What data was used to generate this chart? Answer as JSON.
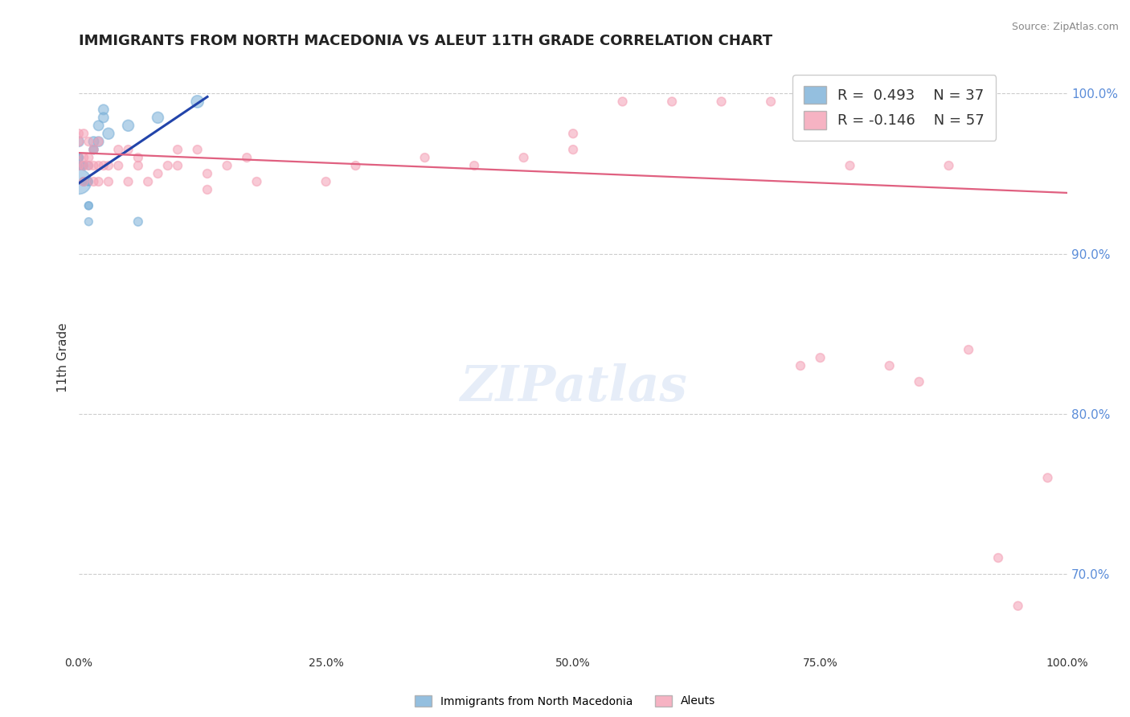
{
  "title": "IMMIGRANTS FROM NORTH MACEDONIA VS ALEUT 11TH GRADE CORRELATION CHART",
  "source_text": "Source: ZipAtlas.com",
  "ylabel": "11th Grade",
  "legend_entries": [
    {
      "label": "R =  0.493    N = 37",
      "color": "#a8c4e0"
    },
    {
      "label": "R = -0.146    N = 57",
      "color": "#f4a0b5"
    }
  ],
  "blue_scatter": {
    "x": [
      0.0,
      0.0,
      0.0,
      0.0,
      0.0,
      0.0,
      0.0,
      0.0,
      0.0,
      0.0,
      0.005,
      0.005,
      0.005,
      0.005,
      0.005,
      0.005,
      0.005,
      0.005,
      0.005,
      0.01,
      0.01,
      0.01,
      0.01,
      0.01,
      0.01,
      0.015,
      0.015,
      0.015,
      0.02,
      0.02,
      0.025,
      0.025,
      0.03,
      0.05,
      0.06,
      0.08,
      0.12
    ],
    "y": [
      0.97,
      0.96,
      0.96,
      0.96,
      0.955,
      0.955,
      0.955,
      0.955,
      0.955,
      0.945,
      0.955,
      0.955,
      0.955,
      0.955,
      0.945,
      0.945,
      0.945,
      0.945,
      0.945,
      0.955,
      0.945,
      0.945,
      0.93,
      0.93,
      0.92,
      0.97,
      0.965,
      0.965,
      0.97,
      0.98,
      0.985,
      0.99,
      0.975,
      0.98,
      0.92,
      0.985,
      0.995
    ],
    "sizes": [
      80,
      60,
      60,
      60,
      50,
      50,
      50,
      50,
      50,
      500,
      50,
      50,
      50,
      50,
      50,
      50,
      50,
      50,
      50,
      50,
      50,
      50,
      50,
      50,
      50,
      80,
      60,
      60,
      80,
      80,
      80,
      80,
      100,
      100,
      60,
      100,
      120
    ]
  },
  "pink_scatter": {
    "x": [
      0.0,
      0.0,
      0.0,
      0.005,
      0.005,
      0.005,
      0.005,
      0.01,
      0.01,
      0.01,
      0.015,
      0.015,
      0.015,
      0.02,
      0.02,
      0.02,
      0.025,
      0.03,
      0.03,
      0.04,
      0.04,
      0.05,
      0.05,
      0.06,
      0.06,
      0.07,
      0.08,
      0.09,
      0.1,
      0.1,
      0.12,
      0.13,
      0.13,
      0.15,
      0.17,
      0.18,
      0.25,
      0.28,
      0.35,
      0.4,
      0.45,
      0.5,
      0.5,
      0.55,
      0.6,
      0.65,
      0.7,
      0.73,
      0.75,
      0.78,
      0.82,
      0.85,
      0.88,
      0.9,
      0.93,
      0.95,
      0.98
    ],
    "y": [
      0.975,
      0.97,
      0.955,
      0.975,
      0.96,
      0.955,
      0.945,
      0.97,
      0.96,
      0.955,
      0.965,
      0.955,
      0.945,
      0.97,
      0.955,
      0.945,
      0.955,
      0.955,
      0.945,
      0.965,
      0.955,
      0.965,
      0.945,
      0.96,
      0.955,
      0.945,
      0.95,
      0.955,
      0.965,
      0.955,
      0.965,
      0.95,
      0.94,
      0.955,
      0.96,
      0.945,
      0.945,
      0.955,
      0.96,
      0.955,
      0.96,
      0.965,
      0.975,
      0.995,
      0.995,
      0.995,
      0.995,
      0.83,
      0.835,
      0.955,
      0.83,
      0.82,
      0.955,
      0.84,
      0.71,
      0.68,
      0.76
    ],
    "sizes": [
      60,
      60,
      60,
      60,
      60,
      60,
      60,
      60,
      60,
      60,
      60,
      60,
      60,
      60,
      60,
      60,
      60,
      60,
      60,
      60,
      60,
      60,
      60,
      60,
      60,
      60,
      60,
      60,
      60,
      60,
      60,
      60,
      60,
      60,
      60,
      60,
      60,
      60,
      60,
      60,
      60,
      60,
      60,
      60,
      60,
      60,
      60,
      60,
      60,
      60,
      60,
      60,
      60,
      60,
      60,
      60,
      60
    ]
  },
  "blue_line": {
    "x": [
      0.0,
      0.13
    ],
    "y": [
      0.944,
      0.998
    ]
  },
  "pink_line": {
    "x": [
      0.0,
      1.0
    ],
    "y": [
      0.963,
      0.938
    ]
  },
  "xlim": [
    0.0,
    1.0
  ],
  "ylim": [
    0.65,
    1.02
  ],
  "yticks": [
    0.7,
    0.8,
    0.9,
    1.0
  ],
  "ytick_labels": [
    "70.0%",
    "80.0%",
    "90.0%",
    "100.0%"
  ],
  "xticks": [
    0.0,
    0.25,
    0.5,
    0.75,
    1.0
  ],
  "xtick_labels": [
    "0.0%",
    "25.0%",
    "50.0%",
    "75.0%",
    "100.0%"
  ],
  "grid_color": "#cccccc",
  "blue_color": "#7ab0d8",
  "pink_color": "#f4a0b5",
  "blue_line_color": "#2244aa",
  "pink_line_color": "#e06080",
  "right_axis_color": "#5b8dd9",
  "title_fontsize": 13,
  "axis_label_fontsize": 11
}
